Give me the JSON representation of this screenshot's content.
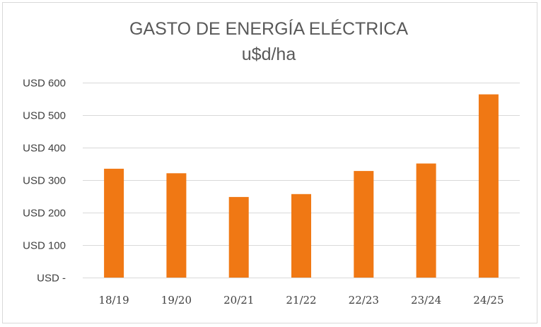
{
  "chart_data": {
    "type": "bar",
    "title": "GASTO DE ENERGÍA ELÉCTRICA",
    "subtitle": "u$d/ha",
    "xlabel": "",
    "ylabel": "",
    "categories": [
      "18/19",
      "19/20",
      "20/21",
      "21/22",
      "22/23",
      "23/24",
      "24/25"
    ],
    "values": [
      335,
      321,
      248,
      257,
      328,
      351,
      564
    ],
    "ylim": [
      0,
      600
    ],
    "yticks": [
      0,
      100,
      200,
      300,
      400,
      500,
      600
    ],
    "ytick_labels": [
      "USD -",
      "USD 100",
      "USD 200",
      "USD 300",
      "USD 400",
      "USD 500",
      "USD 600"
    ],
    "grid": true,
    "legend": "none",
    "bar_color": "#F07814",
    "grid_color": "#D9D9D9",
    "text_color": "#404040"
  }
}
